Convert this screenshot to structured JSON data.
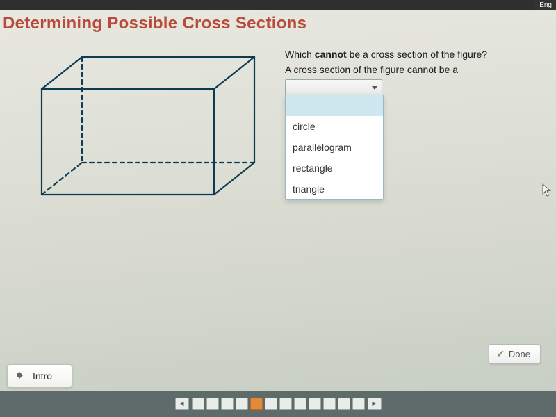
{
  "corner": "Eng",
  "title": "Determining Possible Cross Sections",
  "question": {
    "line1_pre": "Which ",
    "line1_bold": "cannot",
    "line1_post": " be a cross section of the figure?",
    "line2": "A cross section of the figure cannot be a"
  },
  "dropdown": {
    "selected": "",
    "options": [
      "circle",
      "parallelogram",
      "rectangle",
      "triangle"
    ]
  },
  "buttons": {
    "done": "Done",
    "intro": "Intro"
  },
  "figure": {
    "stroke": "#0d3b4f",
    "stroke_width": 2.2,
    "dash": "6,5"
  },
  "pager": {
    "count": 12,
    "active_index": 4
  },
  "colors": {
    "title": "#b94a3a",
    "bg_top": "#e8e8e0",
    "bg_bottom": "#c5cdc2",
    "bar": "#5f6b6a",
    "active_page": "#e08a3a"
  }
}
